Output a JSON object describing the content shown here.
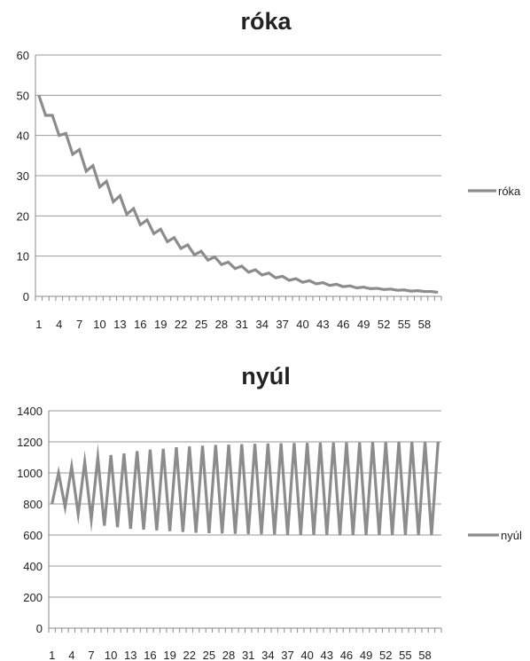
{
  "chart_data": [
    {
      "type": "line",
      "title": "róka",
      "xlabel": "",
      "ylabel": "",
      "ylim": [
        0,
        60
      ],
      "yticks": [
        "0",
        "10",
        "20",
        "30",
        "40",
        "50",
        "60"
      ],
      "xtick_labels": [
        "1",
        "4",
        "7",
        "10",
        "13",
        "16",
        "19",
        "22",
        "25",
        "28",
        "31",
        "34",
        "37",
        "40",
        "43",
        "46",
        "49",
        "52",
        "55",
        "58"
      ],
      "grid": true,
      "legend_position": "right",
      "series": [
        {
          "name": "róka",
          "color": "#8c8c8c",
          "values": [
            50,
            45,
            45,
            40,
            40.5,
            35.3,
            36.5,
            31.1,
            32.5,
            27.2,
            28.6,
            23.5,
            25.0,
            20.4,
            21.8,
            17.8,
            19.0,
            15.6,
            16.7,
            13.6,
            14.6,
            11.9,
            12.8,
            10.3,
            11.2,
            9.0,
            9.8,
            7.9,
            8.5,
            6.9,
            7.5,
            6.0,
            6.6,
            5.3,
            5.8,
            4.6,
            5.0,
            4.0,
            4.4,
            3.5,
            3.9,
            3.1,
            3.4,
            2.7,
            3.0,
            2.4,
            2.6,
            2.1,
            2.3,
            1.9,
            2.0,
            1.7,
            1.8,
            1.5,
            1.6,
            1.3,
            1.4,
            1.2,
            1.2,
            1.0
          ]
        }
      ]
    },
    {
      "type": "line",
      "title": "nyúl",
      "xlabel": "",
      "ylabel": "",
      "ylim": [
        0,
        1400
      ],
      "yticks": [
        "0",
        "200",
        "400",
        "600",
        "800",
        "1000",
        "1200",
        "1400"
      ],
      "xtick_labels": [
        "1",
        "4",
        "7",
        "10",
        "13",
        "16",
        "19",
        "22",
        "25",
        "28",
        "31",
        "34",
        "37",
        "40",
        "43",
        "46",
        "49",
        "52",
        "55",
        "58"
      ],
      "grid": true,
      "legend_position": "right",
      "series": [
        {
          "name": "nyúl",
          "color": "#8c8c8c",
          "values": [
            800,
            1000,
            780,
            1040,
            735,
            1070,
            700,
            1100,
            660,
            1115,
            650,
            1125,
            640,
            1140,
            635,
            1150,
            630,
            1155,
            625,
            1165,
            620,
            1170,
            615,
            1175,
            612,
            1180,
            610,
            1182,
            608,
            1185,
            606,
            1187,
            605,
            1189,
            604,
            1191,
            603,
            1192,
            602,
            1193,
            601,
            1194,
            601,
            1195,
            600,
            1196,
            600,
            1196,
            600,
            1197,
            600,
            1197,
            600,
            1198,
            600,
            1198,
            600,
            1199,
            600,
            1200
          ]
        }
      ]
    }
  ]
}
